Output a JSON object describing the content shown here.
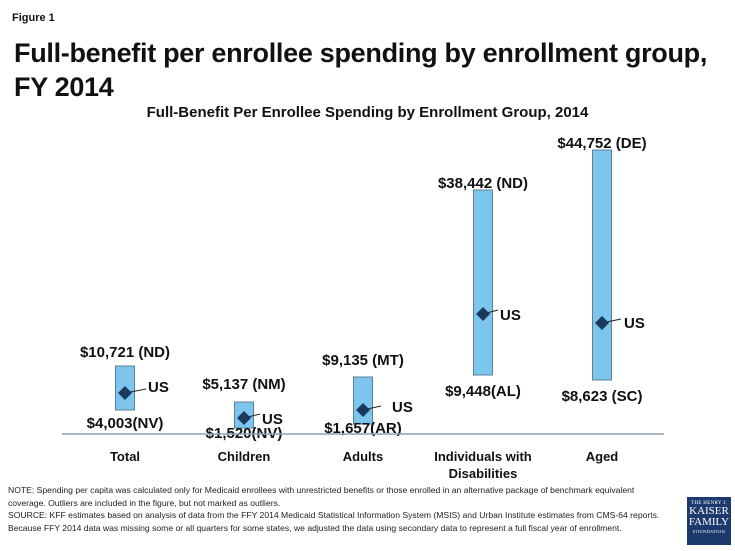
{
  "figure_label": "Figure 1",
  "title": "Full-benefit per enrollee spending by enrollment group, FY 2014",
  "chart_data": {
    "type": "range",
    "title": "Full-Benefit Per Enrollee Spending by Enrollment Group, 2014",
    "xlabel": "",
    "ylabel": "",
    "grid": false,
    "legend": "none",
    "categories": [
      "Total",
      "Children",
      "Adults",
      "Individuals with Disabilities",
      "Aged"
    ],
    "category_lines": [
      [
        "Total"
      ],
      [
        "Children"
      ],
      [
        "Adults"
      ],
      [
        "Individuals with",
        "Disabilities"
      ],
      [
        "Aged"
      ]
    ],
    "series": [
      {
        "name": "Maximum",
        "values": [
          10721,
          5137,
          9135,
          38442,
          44752
        ],
        "labels": [
          "$10,721 (ND)",
          "$5,137 (NM)",
          "$9,135 (MT)",
          "$38,442 (ND)",
          "$44,752 (DE)"
        ],
        "states": [
          "ND",
          "NM",
          "MT",
          "ND",
          "DE"
        ]
      },
      {
        "name": "Minimum",
        "values": [
          4003,
          1520,
          1657,
          9448,
          8623
        ],
        "labels": [
          "$4,003(NV)",
          "$1,520(NV)",
          "$1,657(AR)",
          "$9,448(AL)",
          "$8,623 (SC)"
        ],
        "states": [
          "NV",
          "NV",
          "AR",
          "AL",
          "SC"
        ]
      },
      {
        "name": "US",
        "marker_label": "US"
      }
    ],
    "colors": {
      "bar": "#7cc5ee",
      "bar_border": "#5f7f95",
      "marker": "#1a3a5c",
      "axis": "#8aa0b4"
    }
  },
  "notes": {
    "note": "NOTE: Spending per capita was calculated only for Medicaid enrollees with unrestricted benefits or those enrolled in an alternative package of benchmark equivalent coverage. Outliers are included in the figure, but not marked as outliers.",
    "source": "SOURCE: KFF estimates based on analysis of data from the FFY 2014 Medicaid Statistical Information System (MSIS) and Urban Institute estimates from CMS-64 reports. Because FFY 2014 data was missing some or all quarters for some states, we adjusted the data using secondary data to represent a full fiscal year of enrollment."
  },
  "logo": {
    "line1": "THE HENRY J.",
    "line2": "KAISER",
    "line3": "FAMILY",
    "line4": "FOUNDATION"
  }
}
